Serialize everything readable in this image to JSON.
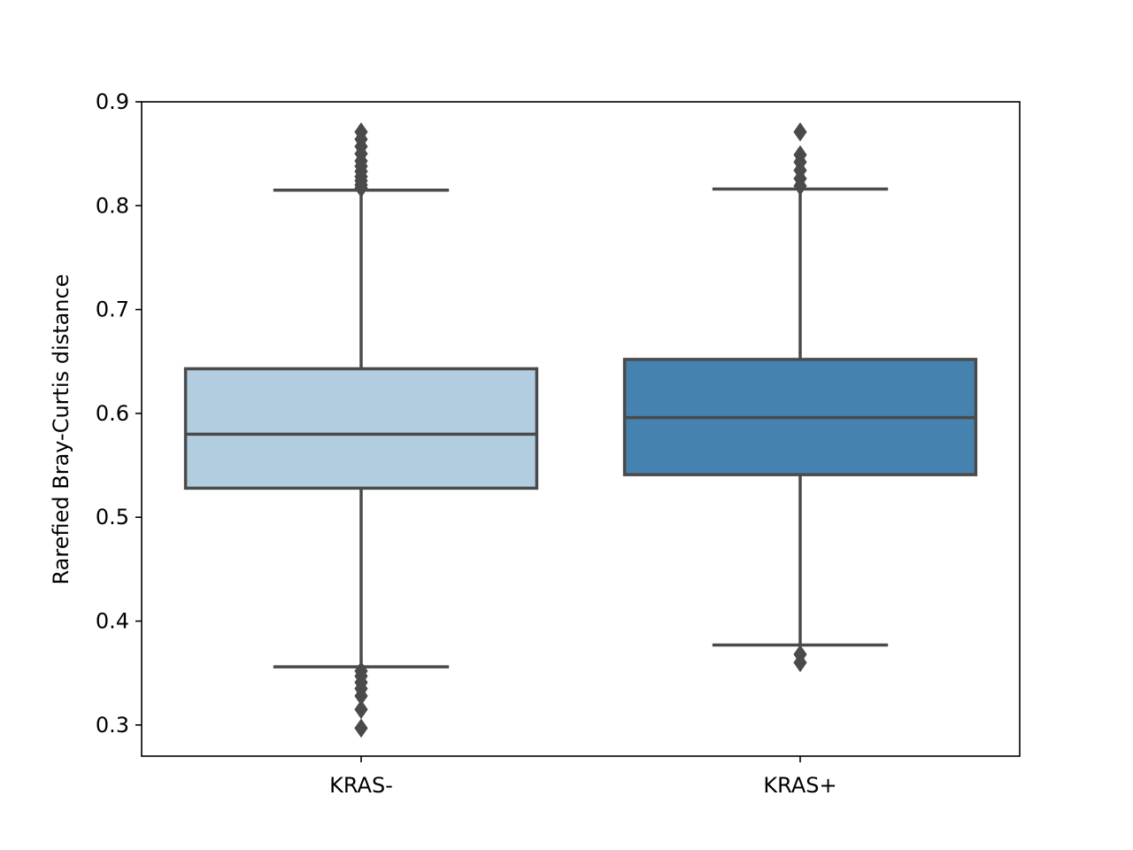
{
  "chart_data": {
    "type": "box",
    "title": "",
    "xlabel": "",
    "ylabel": "Rarefied Bray-Curtis distance",
    "ylim": [
      0.27,
      0.9
    ],
    "yticks": [
      0.3,
      0.4,
      0.5,
      0.6,
      0.7,
      0.8,
      0.9
    ],
    "ytick_labels": [
      "0.3",
      "0.4",
      "0.5",
      "0.6",
      "0.7",
      "0.8",
      "0.9"
    ],
    "categories": [
      "KRAS-",
      "KRAS+"
    ],
    "grid": false,
    "boxes": [
      {
        "category": "KRAS-",
        "color": "#b3cde0",
        "whisker_low": 0.356,
        "q1": 0.528,
        "median": 0.58,
        "q3": 0.643,
        "whisker_high": 0.815,
        "outliers": [
          0.297,
          0.315,
          0.328,
          0.335,
          0.341,
          0.347,
          0.352,
          0.817,
          0.82,
          0.824,
          0.828,
          0.833,
          0.838,
          0.843,
          0.85,
          0.857,
          0.864,
          0.871
        ]
      },
      {
        "category": "KRAS+",
        "color": "#4682b0",
        "whisker_low": 0.377,
        "q1": 0.541,
        "median": 0.596,
        "q3": 0.652,
        "whisker_high": 0.816,
        "outliers": [
          0.36,
          0.368,
          0.819,
          0.826,
          0.834,
          0.842,
          0.849,
          0.871
        ]
      }
    ],
    "line_color": "#4a4a4a"
  }
}
